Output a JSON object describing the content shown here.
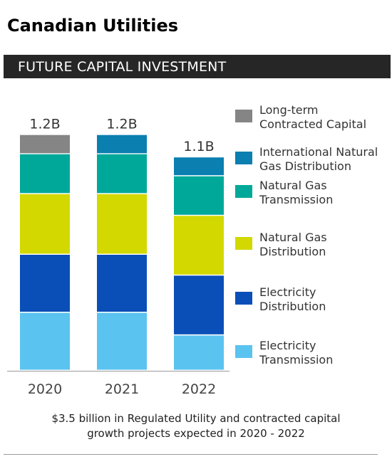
{
  "title": "Canadian Utilities",
  "banner": "FUTURE CAPITAL INVESTMENT",
  "caption": {
    "line1": "$3.5 billion in Regulated Utility and contracted capital",
    "line2": "growth projects expected in 2020 - 2022"
  },
  "chart_data": {
    "type": "bar",
    "stacked": true,
    "categories": [
      "2020",
      "2021",
      "2022"
    ],
    "totals_label": [
      "1.2B",
      "1.2B",
      "1.1B"
    ],
    "totals": [
      1.2,
      1.2,
      1.1
    ],
    "units": "billions (estimated from bar heights)",
    "series": [
      {
        "name": "Electricity Transmission",
        "color": "#5bc3f0",
        "values": [
          0.289,
          0.289,
          0.176
        ]
      },
      {
        "name": "Electricity Distribution",
        "color": "#0a4fb8",
        "values": [
          0.289,
          0.289,
          0.298
        ]
      },
      {
        "name": "Natural Gas Distribution",
        "color": "#d2d800",
        "values": [
          0.302,
          0.302,
          0.298
        ]
      },
      {
        "name": "Natural Gas Transmission",
        "color": "#00a89a",
        "values": [
          0.199,
          0.199,
          0.197
        ]
      },
      {
        "name": "International Natural Gas Distribution",
        "color": "#0a7fb0",
        "values": [
          0.0,
          0.096,
          0.094
        ]
      },
      {
        "name": "Long-term Contracted Capital",
        "color": "#858585",
        "values": [
          0.096,
          0.0,
          0.0
        ]
      }
    ],
    "legend": [
      {
        "label": [
          "Long-term",
          "Contracted Capital"
        ],
        "color": "#858585"
      },
      {
        "label": [
          "International Natural",
          "Gas Distribution"
        ],
        "color": "#0a7fb0"
      },
      {
        "label": [
          "Natural Gas",
          "Transmission"
        ],
        "color": "#00a89a"
      },
      {
        "label": [
          "Natural Gas",
          "Distribution"
        ],
        "color": "#d2d800"
      },
      {
        "label": [
          "Electricity",
          "Distribution"
        ],
        "color": "#0a4fb8"
      },
      {
        "label": [
          "Electricity",
          "Transmission"
        ],
        "color": "#5bc3f0"
      }
    ],
    "legend_position": "right",
    "axis_line_color": "#9a9a9a",
    "grid": false
  }
}
